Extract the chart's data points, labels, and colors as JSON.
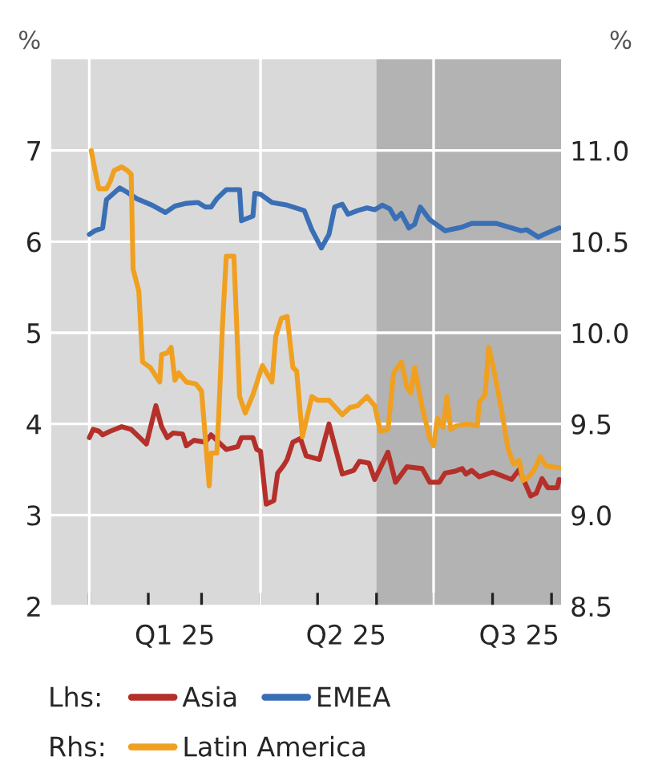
{
  "chart_data": {
    "type": "line",
    "ylabel": "%",
    "y2label": "%",
    "xlim": [
      "2024-12-12",
      "2025-09-06"
    ],
    "xticks": [
      {
        "value": "2025-01-01",
        "label": null
      },
      {
        "value": "2025-02-01",
        "label": null
      },
      {
        "value": "2025-03-01",
        "label": null
      },
      {
        "value": "2025-04-01",
        "label": null
      },
      {
        "value": "2025-05-01",
        "label": null
      },
      {
        "value": "2025-06-01",
        "label": null
      },
      {
        "value": "2025-07-01",
        "label": null
      },
      {
        "value": "2025-08-01",
        "label": null
      },
      {
        "value": "2025-09-01",
        "label": null
      },
      {
        "value": "2025-02-15",
        "label": "Q1 25"
      },
      {
        "value": "2025-05-16",
        "label": "Q2 25"
      },
      {
        "value": "2025-08-15",
        "label": "Q3 25"
      }
    ],
    "ylim": [
      2,
      8
    ],
    "yticks": [
      2,
      3,
      4,
      5,
      6,
      7
    ],
    "y2lim": [
      8.5,
      11.5
    ],
    "y2ticks": [
      {
        "value": 8.5,
        "label": "8.5"
      },
      {
        "value": 9,
        "label": "9.0"
      },
      {
        "value": 9.5,
        "label": "9.5"
      },
      {
        "value": 10,
        "label": "10.0"
      },
      {
        "value": 10.5,
        "label": "10.5"
      },
      {
        "value": 11,
        "label": "11.0"
      }
    ],
    "grid": "y",
    "legend": "bottom",
    "annotations": [
      "Lhs:",
      "Rhs:"
    ],
    "ref_lines": [
      {
        "axis": "x",
        "value": "2025-01-01",
        "label": null,
        "color": "#ffffff"
      },
      {
        "axis": "x",
        "value": "2025-04-01",
        "label": null,
        "color": "#ffffff"
      },
      {
        "axis": "x",
        "value": "2025-07-01",
        "label": null,
        "color": "#ffffff"
      }
    ],
    "bands": [
      {
        "axis": "x",
        "from": "2025-06-01",
        "to": "2025-09-06",
        "label": null,
        "color": "#b3b3b3"
      }
    ],
    "series": [
      {
        "name": "Asia",
        "color": "#b5302a",
        "axis": "y",
        "x": [
          "2025-01-01",
          "2025-01-03",
          "2025-01-06",
          "2025-01-08",
          "2025-01-12",
          "2025-01-18",
          "2025-01-23",
          "2025-01-29",
          "2025-01-31",
          "2025-02-05",
          "2025-02-08",
          "2025-02-11",
          "2025-02-14",
          "2025-02-19",
          "2025-02-21",
          "2025-02-25",
          "2025-03-03",
          "2025-03-06",
          "2025-03-10",
          "2025-03-14",
          "2025-03-20",
          "2025-03-22",
          "2025-03-28",
          "2025-03-30",
          "2025-04-01",
          "2025-04-04",
          "2025-04-08",
          "2025-04-10",
          "2025-04-13",
          "2025-04-15",
          "2025-04-18",
          "2025-04-22",
          "2025-04-25",
          "2025-05-02",
          "2025-05-07",
          "2025-05-14",
          "2025-05-20",
          "2025-05-23",
          "2025-05-28",
          "2025-05-31",
          "2025-06-07",
          "2025-06-11",
          "2025-06-17",
          "2025-06-25",
          "2025-06-29",
          "2025-07-04",
          "2025-07-07",
          "2025-07-12",
          "2025-07-16",
          "2025-07-18",
          "2025-07-21",
          "2025-07-25",
          "2025-08-01",
          "2025-08-06",
          "2025-08-11",
          "2025-08-15",
          "2025-08-21",
          "2025-08-24",
          "2025-08-27",
          "2025-08-30",
          "2025-09-04",
          "2025-09-05"
        ],
        "values": [
          3.85,
          3.94,
          3.92,
          3.88,
          3.92,
          3.97,
          3.94,
          3.82,
          3.78,
          4.2,
          3.97,
          3.85,
          3.9,
          3.89,
          3.76,
          3.82,
          3.8,
          3.88,
          3.8,
          3.72,
          3.75,
          3.85,
          3.85,
          3.72,
          3.7,
          3.12,
          3.16,
          3.46,
          3.54,
          3.61,
          3.8,
          3.84,
          3.65,
          3.61,
          4.0,
          3.45,
          3.49,
          3.59,
          3.57,
          3.39,
          3.69,
          3.36,
          3.53,
          3.51,
          3.36,
          3.36,
          3.46,
          3.48,
          3.51,
          3.45,
          3.49,
          3.42,
          3.47,
          3.43,
          3.39,
          3.5,
          3.21,
          3.24,
          3.4,
          3.3,
          3.3,
          3.39
        ]
      },
      {
        "name": "EMEA",
        "color": "#3a6fb5",
        "axis": "y",
        "x": [
          "2025-01-01",
          "2025-01-04",
          "2025-01-08",
          "2025-01-10",
          "2025-01-17",
          "2025-01-21",
          "2025-01-26",
          "2025-02-03",
          "2025-02-10",
          "2025-02-15",
          "2025-02-21",
          "2025-02-27",
          "2025-03-03",
          "2025-03-06",
          "2025-03-09",
          "2025-03-14",
          "2025-03-21",
          "2025-03-22",
          "2025-03-28",
          "2025-03-29",
          "2025-04-01",
          "2025-04-07",
          "2025-04-15",
          "2025-04-24",
          "2025-04-28",
          "2025-05-03",
          "2025-05-07",
          "2025-05-10",
          "2025-05-14",
          "2025-05-17",
          "2025-05-22",
          "2025-05-27",
          "2025-05-31",
          "2025-06-04",
          "2025-06-08",
          "2025-06-11",
          "2025-06-14",
          "2025-06-18",
          "2025-06-21",
          "2025-06-24",
          "2025-06-29",
          "2025-07-07",
          "2025-07-16",
          "2025-07-21",
          "2025-08-03",
          "2025-08-11",
          "2025-08-16",
          "2025-08-19",
          "2025-08-25",
          "2025-08-28",
          "2025-09-05"
        ],
        "values": [
          6.08,
          6.12,
          6.15,
          6.46,
          6.59,
          6.54,
          6.47,
          6.4,
          6.32,
          6.39,
          6.42,
          6.43,
          6.38,
          6.38,
          6.47,
          6.57,
          6.57,
          6.23,
          6.28,
          6.53,
          6.52,
          6.43,
          6.4,
          6.34,
          6.13,
          5.93,
          6.08,
          6.38,
          6.41,
          6.3,
          6.34,
          6.37,
          6.35,
          6.4,
          6.36,
          6.25,
          6.31,
          6.15,
          6.19,
          6.38,
          6.24,
          6.12,
          6.16,
          6.2,
          6.2,
          6.15,
          6.12,
          6.13,
          6.05,
          6.08,
          6.15
        ]
      },
      {
        "name": "Latin America",
        "color": "#f0a020",
        "axis": "y2",
        "x": [
          "2025-01-02",
          "2025-01-04",
          "2025-01-06",
          "2025-01-10",
          "2025-01-12",
          "2025-01-14",
          "2025-01-18",
          "2025-01-21",
          "2025-01-23",
          "2025-01-24",
          "2025-01-27",
          "2025-01-29",
          "2025-02-02",
          "2025-02-07",
          "2025-02-08",
          "2025-02-11",
          "2025-02-13",
          "2025-02-15",
          "2025-02-17",
          "2025-02-21",
          "2025-02-26",
          "2025-03-01",
          "2025-03-05",
          "2025-03-06",
          "2025-03-09",
          "2025-03-10",
          "2025-03-12",
          "2025-03-14",
          "2025-03-18",
          "2025-03-21",
          "2025-03-24",
          "2025-03-28",
          "2025-04-02",
          "2025-04-07",
          "2025-04-09",
          "2025-04-12",
          "2025-04-15",
          "2025-04-18",
          "2025-04-20",
          "2025-04-23",
          "2025-04-28",
          "2025-05-01",
          "2025-05-07",
          "2025-05-14",
          "2025-05-18",
          "2025-05-22",
          "2025-05-27",
          "2025-05-31",
          "2025-06-03",
          "2025-06-07",
          "2025-06-10",
          "2025-06-14",
          "2025-06-17",
          "2025-06-19",
          "2025-06-21",
          "2025-06-25",
          "2025-06-29",
          "2025-07-01",
          "2025-07-03",
          "2025-07-06",
          "2025-07-08",
          "2025-07-10",
          "2025-07-13",
          "2025-07-19",
          "2025-07-24",
          "2025-07-25",
          "2025-07-28",
          "2025-07-30",
          "2025-08-02",
          "2025-08-06",
          "2025-08-09",
          "2025-08-12",
          "2025-08-15",
          "2025-08-17",
          "2025-08-20",
          "2025-08-23",
          "2025-08-26",
          "2025-08-29",
          "2025-09-05"
        ],
        "values": [
          11.0,
          10.89,
          10.79,
          10.79,
          10.83,
          10.89,
          10.91,
          10.89,
          10.87,
          10.35,
          10.23,
          9.84,
          9.81,
          9.73,
          9.88,
          9.89,
          9.92,
          9.74,
          9.78,
          9.73,
          9.72,
          9.68,
          9.16,
          9.34,
          9.34,
          9.54,
          10.04,
          10.42,
          10.42,
          9.65,
          9.56,
          9.66,
          9.82,
          9.73,
          9.98,
          10.08,
          10.09,
          9.81,
          9.79,
          9.43,
          9.65,
          9.63,
          9.63,
          9.55,
          9.59,
          9.6,
          9.65,
          9.6,
          9.46,
          9.47,
          9.78,
          9.84,
          9.7,
          9.67,
          9.81,
          9.59,
          9.42,
          9.38,
          9.53,
          9.48,
          9.65,
          9.47,
          9.49,
          9.5,
          9.49,
          9.62,
          9.66,
          9.92,
          9.78,
          9.56,
          9.37,
          9.28,
          9.3,
          9.19,
          9.21,
          9.25,
          9.32,
          9.27,
          9.26
        ]
      }
    ]
  }
}
